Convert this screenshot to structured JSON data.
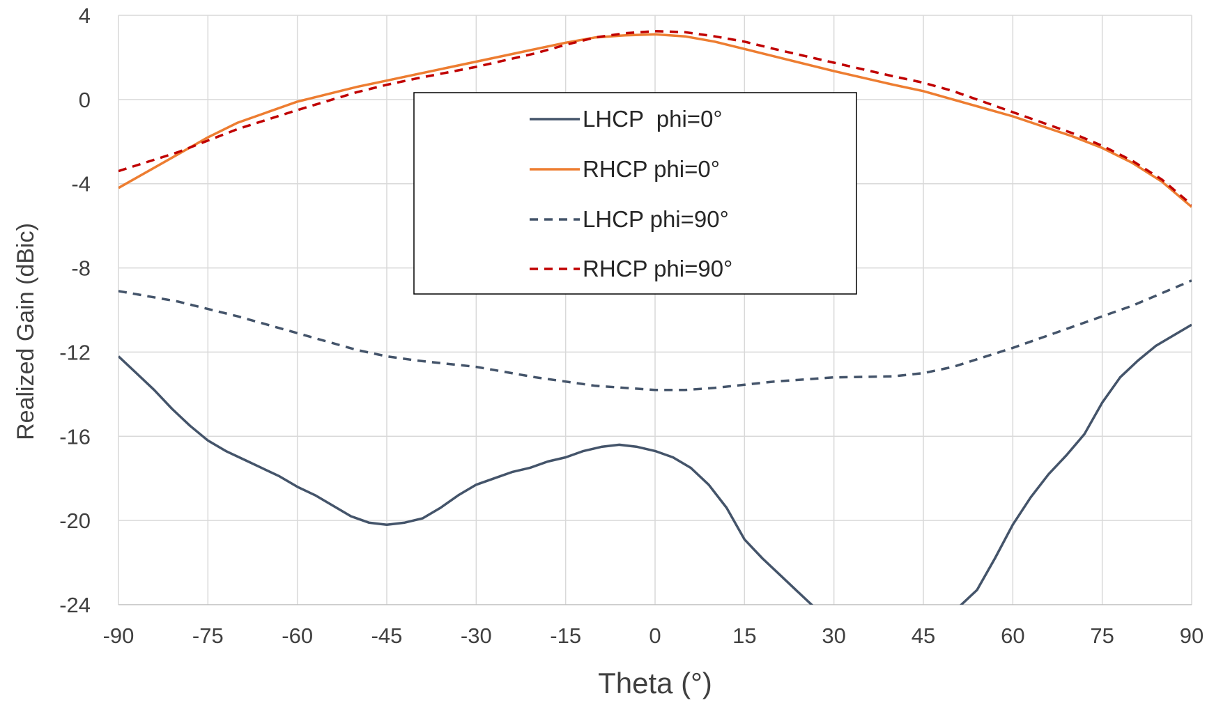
{
  "chart_data": {
    "type": "line",
    "xlabel": "Theta (°)",
    "ylabel": "Realized Gain (dBic)",
    "xlim": [
      -90,
      90
    ],
    "ylim": [
      -24,
      4
    ],
    "xticks": [
      -90,
      -75,
      -60,
      -45,
      -30,
      -15,
      0,
      15,
      30,
      45,
      60,
      75,
      90
    ],
    "yticks": [
      4,
      0,
      -4,
      -8,
      -12,
      -16,
      -20,
      -24
    ],
    "grid": true,
    "legend_position": "top-center",
    "series": [
      {
        "name": "LHCP  phi=0°",
        "color": "#44546a",
        "dash": "solid",
        "x": [
          -90,
          -87,
          -84,
          -81,
          -78,
          -75,
          -72,
          -69,
          -66,
          -63,
          -60,
          -57,
          -54,
          -51,
          -48,
          -45,
          -42,
          -39,
          -36,
          -33,
          -30,
          -27,
          -24,
          -21,
          -18,
          -15,
          -12,
          -9,
          -6,
          -3,
          0,
          3,
          6,
          9,
          12,
          15,
          18,
          21,
          24,
          27,
          45,
          48,
          51,
          54,
          57,
          60,
          63,
          66,
          69,
          72,
          75,
          78,
          81,
          84,
          87,
          90
        ],
        "y": [
          -12.2,
          -13.0,
          -13.8,
          -14.7,
          -15.5,
          -16.2,
          -16.7,
          -17.1,
          -17.5,
          -17.9,
          -18.4,
          -18.8,
          -19.3,
          -19.8,
          -20.1,
          -20.2,
          -20.1,
          -19.9,
          -19.4,
          -18.8,
          -18.3,
          -18.0,
          -17.7,
          -17.5,
          -17.2,
          -17.0,
          -16.7,
          -16.5,
          -16.4,
          -16.5,
          -16.7,
          -17.0,
          -17.5,
          -18.3,
          -19.4,
          -20.9,
          -21.8,
          -22.6,
          -23.4,
          -24.2,
          null,
          -24.2,
          -24.1,
          -23.3,
          -21.8,
          -20.2,
          -18.9,
          -17.8,
          -16.9,
          -15.9,
          -14.4,
          -13.2,
          -12.4,
          -11.7,
          -11.2,
          -10.7
        ]
      },
      {
        "name": "RHCP phi=0°",
        "color": "#ed7d31",
        "dash": "solid",
        "x": [
          -90,
          -80,
          -75,
          -70,
          -60,
          -50,
          -45,
          -40,
          -30,
          -20,
          -15,
          -10,
          -5,
          0,
          5,
          10,
          15,
          20,
          30,
          40,
          45,
          50,
          60,
          70,
          75,
          80,
          85,
          90
        ],
        "y": [
          -4.2,
          -2.6,
          -1.8,
          -1.1,
          -0.1,
          0.6,
          0.9,
          1.2,
          1.8,
          2.4,
          2.7,
          2.95,
          3.05,
          3.1,
          3.0,
          2.75,
          2.4,
          2.05,
          1.35,
          0.7,
          0.4,
          0.0,
          -0.8,
          -1.75,
          -2.3,
          -3.0,
          -3.9,
          -5.1
        ]
      },
      {
        "name": "LHCP phi=90°",
        "color": "#44546a",
        "dash": "dashed",
        "x": [
          -90,
          -80,
          -70,
          -60,
          -50,
          -45,
          -40,
          -30,
          -20,
          -10,
          0,
          5,
          10,
          20,
          30,
          40,
          45,
          50,
          60,
          70,
          80,
          90
        ],
        "y": [
          -9.1,
          -9.6,
          -10.3,
          -11.1,
          -11.9,
          -12.2,
          -12.4,
          -12.7,
          -13.2,
          -13.6,
          -13.8,
          -13.8,
          -13.7,
          -13.4,
          -13.2,
          -13.15,
          -13.0,
          -12.7,
          -11.8,
          -10.8,
          -9.8,
          -8.6
        ]
      },
      {
        "name": "RHCP phi=90°",
        "color": "#c00000",
        "dash": "dashed",
        "x": [
          -90,
          -80,
          -75,
          -70,
          -60,
          -50,
          -45,
          -40,
          -30,
          -20,
          -15,
          -10,
          -5,
          0,
          5,
          10,
          15,
          20,
          30,
          40,
          45,
          50,
          60,
          70,
          75,
          80,
          85,
          90
        ],
        "y": [
          -3.4,
          -2.5,
          -1.95,
          -1.4,
          -0.5,
          0.35,
          0.7,
          1.0,
          1.55,
          2.2,
          2.6,
          2.95,
          3.15,
          3.25,
          3.2,
          3.0,
          2.75,
          2.4,
          1.75,
          1.1,
          0.8,
          0.4,
          -0.6,
          -1.6,
          -2.2,
          -2.9,
          -3.8,
          -5.0
        ]
      }
    ]
  }
}
